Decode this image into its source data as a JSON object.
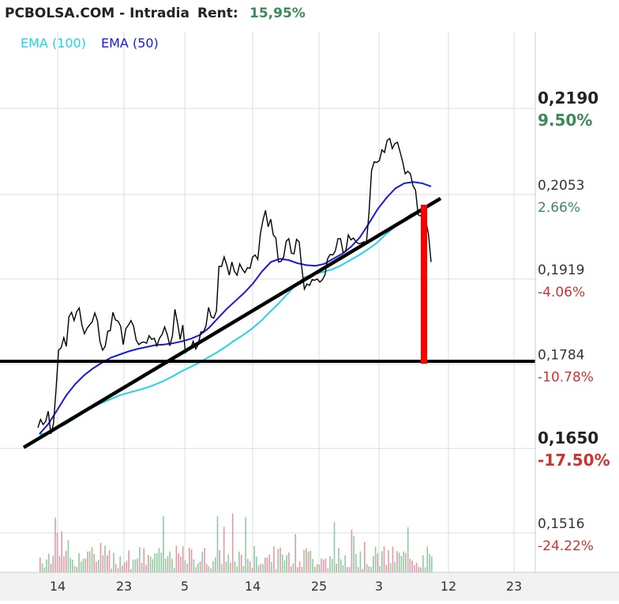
{
  "header": {
    "site": "PCBOLSA.COM - Intradia",
    "rent_label": "Rent:",
    "rent_value": "15,95%"
  },
  "legend": [
    {
      "label": "EMA (100)",
      "color": "#22d3e6"
    },
    {
      "label": "EMA (50)",
      "color": "#1a1ad6"
    }
  ],
  "colors": {
    "price": "#000000",
    "ema100": "#22d3e6",
    "ema50": "#1a1ad6",
    "positive": "#3a8a5a",
    "negative": "#cc3333",
    "annotation_red": "#ff0000",
    "grid": "#dddddd",
    "vol_up": "#8fcaa0",
    "vol_down": "#e09aa6"
  },
  "chart_data": {
    "type": "line",
    "title": "PCBOLSA.COM - Intradia",
    "x_ticks": [
      "14",
      "23",
      "5",
      "14",
      "25",
      "3",
      "12",
      "23"
    ],
    "y_range": [
      0.1455,
      0.229
    ],
    "y_levels": [
      {
        "price": "0,2190",
        "pct": "9.50%",
        "value": 0.219,
        "bold": true,
        "tone": "positive"
      },
      {
        "price": "0,2053",
        "pct": "2.66%",
        "value": 0.2053,
        "bold": false,
        "tone": "positive"
      },
      {
        "price": "0,1919",
        "pct": "-4.06%",
        "value": 0.1919,
        "bold": false,
        "tone": "negative"
      },
      {
        "price": "0,1784",
        "pct": "-10.78%",
        "value": 0.1784,
        "bold": false,
        "tone": "negative"
      },
      {
        "price": "0,1650",
        "pct": "-17.50%",
        "value": 0.165,
        "bold": true,
        "tone": "negative"
      },
      {
        "price": "0,1516",
        "pct": "-24.22%",
        "value": 0.1516,
        "bold": false,
        "tone": "negative"
      }
    ],
    "series": [
      {
        "name": "Price",
        "values": [
          0.1683,
          0.1696,
          0.1688,
          0.1693,
          0.1709,
          0.1673,
          0.1689,
          0.1742,
          0.1806,
          0.181,
          0.1826,
          0.1812,
          0.1859,
          0.1866,
          0.1853,
          0.1867,
          0.1873,
          0.1846,
          0.1832,
          0.1841,
          0.1846,
          0.1851,
          0.1865,
          0.1853,
          0.182,
          0.1806,
          0.1812,
          0.1836,
          0.1837,
          0.1866,
          0.1854,
          0.1852,
          0.1844,
          0.1815,
          0.184,
          0.1846,
          0.1853,
          0.1844,
          0.1822,
          0.1815,
          0.1818,
          0.1819,
          0.1817,
          0.1829,
          0.1823,
          0.1825,
          0.1813,
          0.1825,
          0.1831,
          0.1843,
          0.1831,
          0.1813,
          0.1829,
          0.1871,
          0.1849,
          0.1823,
          0.1846,
          0.1802,
          0.1806,
          0.1808,
          0.182,
          0.1808,
          0.1815,
          0.1835,
          0.1835,
          0.1845,
          0.1874,
          0.1859,
          0.1857,
          0.1868,
          0.1939,
          0.1939,
          0.1954,
          0.1941,
          0.1925,
          0.1946,
          0.1931,
          0.1925,
          0.1943,
          0.1935,
          0.1929,
          0.1937,
          0.1936,
          0.1954,
          0.1957,
          0.195,
          0.1991,
          0.2012,
          0.2028,
          0.2002,
          0.2014,
          0.1989,
          0.1984,
          0.1946,
          0.1947,
          0.1954,
          0.1979,
          0.1983,
          0.196,
          0.1959,
          0.1982,
          0.1978,
          0.1937,
          0.1903,
          0.1911,
          0.1909,
          0.1918,
          0.1917,
          0.1919,
          0.1914,
          0.1918,
          0.1926,
          0.1951,
          0.1958,
          0.1957,
          0.1964,
          0.1983,
          0.1983,
          0.1961,
          0.1963,
          0.1989,
          0.1981,
          0.1984,
          0.1978,
          0.1975,
          0.1976,
          0.1978,
          0.1977,
          0.2025,
          0.2091,
          0.2105,
          0.2104,
          0.2107,
          0.2124,
          0.212,
          0.2139,
          0.2142,
          0.2126,
          0.2134,
          0.2136,
          0.2121,
          0.2105,
          0.2086,
          0.209,
          0.2086,
          0.2067,
          0.206,
          0.2021,
          0.2019,
          0.2025,
          0.2011,
          0.199,
          0.1946
        ]
      },
      {
        "name": "EMA (100)",
        "values": [
          0.1672,
          0.1675,
          0.1682,
          0.1689,
          0.1698,
          0.1707,
          0.1715,
          0.1722,
          0.1728,
          0.1734,
          0.1738,
          0.1742,
          0.1746,
          0.1751,
          0.1757,
          0.1764,
          0.1772,
          0.1779,
          0.1786,
          0.1794,
          0.1802,
          0.1811,
          0.1821,
          0.183,
          0.184,
          0.1852,
          0.1866,
          0.188,
          0.1895,
          0.191,
          0.1922,
          0.1927,
          0.193,
          0.1934,
          0.194,
          0.1948,
          0.1956,
          0.1965,
          0.1975,
          0.1988,
          0.2,
          0.2012,
          0.2022,
          0.2028
        ]
      },
      {
        "name": "EMA (50)",
        "values": [
          0.1673,
          0.1689,
          0.1711,
          0.1734,
          0.1752,
          0.1766,
          0.1777,
          0.1786,
          0.1794,
          0.1799,
          0.1804,
          0.1808,
          0.1811,
          0.1814,
          0.1815,
          0.1817,
          0.182,
          0.1824,
          0.183,
          0.1841,
          0.1856,
          0.1871,
          0.1884,
          0.1897,
          0.1912,
          0.1931,
          0.1946,
          0.1951,
          0.1949,
          0.1944,
          0.1941,
          0.194,
          0.1943,
          0.1951,
          0.1959,
          0.197,
          0.1985,
          0.2007,
          0.203,
          0.2048,
          0.2063,
          0.2071,
          0.2073,
          0.2071,
          0.2066
        ]
      }
    ],
    "volume_bars": 182
  }
}
